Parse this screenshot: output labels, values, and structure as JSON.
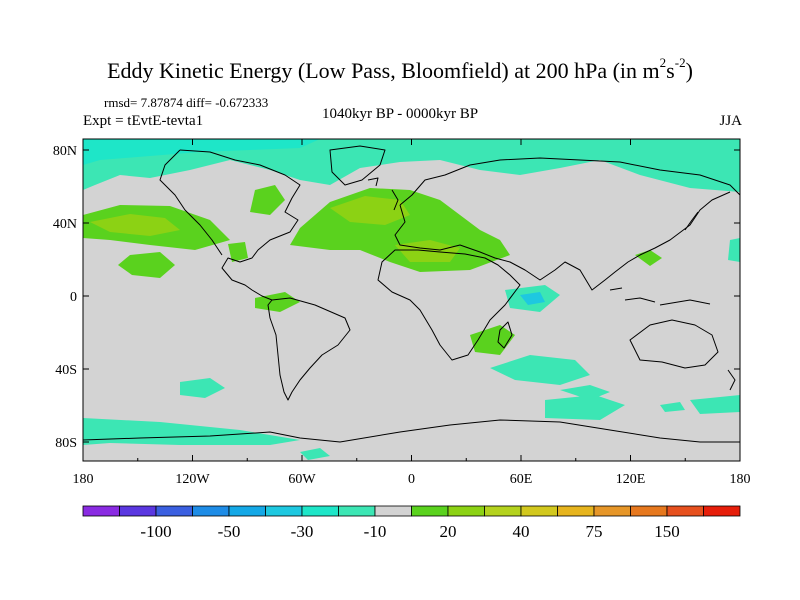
{
  "title": {
    "main": "Eddy Kinetic Energy (Low Pass, Bloomfield) at 200 hPa (in m",
    "sup1": "2",
    "s": "s",
    "sup2": "-2",
    "close": ")"
  },
  "stats_line": "rmsd= 7.87874 diff= -0.672333",
  "experiment_label": "Expt = tEvtE-tevta1",
  "period_label": "1040kyr BP - 0000kyr BP",
  "season_label": "JJA",
  "map": {
    "background_color": "#d3d3d3",
    "lon_ticks": [
      "180",
      "120W",
      "60W",
      "0",
      "60E",
      "120E",
      "180"
    ],
    "lat_ticks": [
      "80N",
      "40N",
      "0",
      "40S",
      "80S"
    ]
  },
  "colorbar": {
    "colors": [
      "#8a2be2",
      "#5a37e0",
      "#3a5fe0",
      "#1e8ce6",
      "#14a8e6",
      "#1ec8e0",
      "#1ee6c8",
      "#3ce6b4",
      "#d3d3d3",
      "#5ad21e",
      "#8cd214",
      "#b4d21e",
      "#d2c81e",
      "#e6b41e",
      "#e69628",
      "#e6781e",
      "#e6501e",
      "#e61e0a"
    ],
    "labels": [
      "-100",
      "-50",
      "-30",
      "-10",
      "20",
      "40",
      "75",
      "150"
    ]
  }
}
